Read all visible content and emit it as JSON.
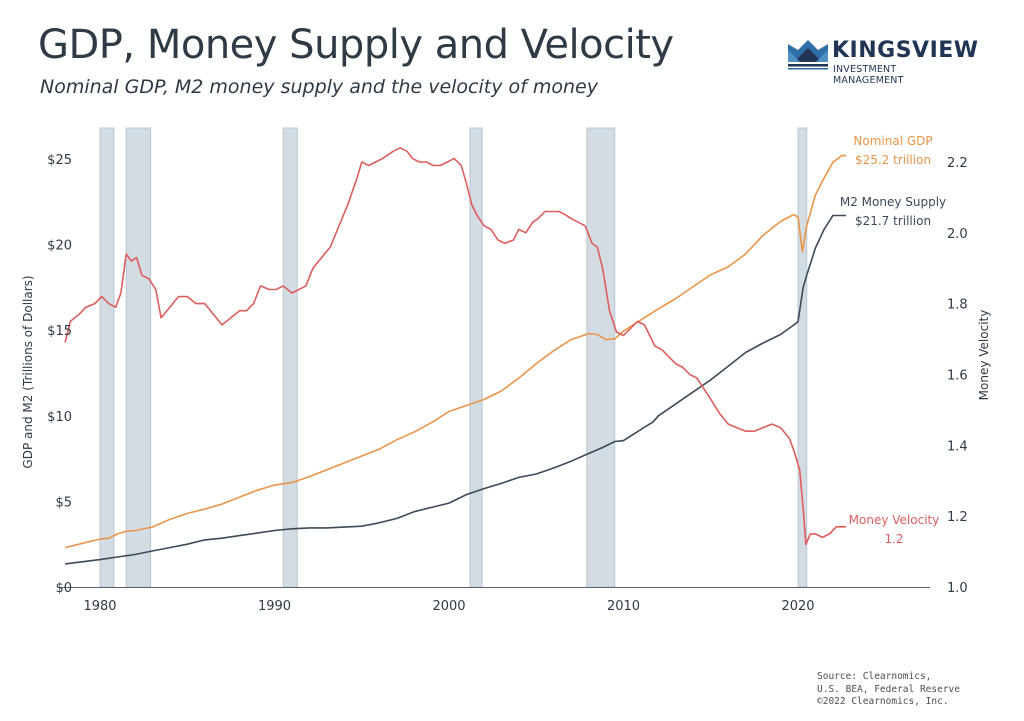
{
  "header": {
    "title": "GDP, Money Supply and Velocity",
    "subtitle": "Nominal GDP, M2 money supply and the velocity of money"
  },
  "logo": {
    "name": "KINGSVIEW",
    "tagline": "INVESTMENT MANAGEMENT",
    "icon": "crown-icon"
  },
  "footer": {
    "source_lines": [
      "Source: Clearnomics,",
      "U.S. BEA, Federal Reserve",
      "©2022 Clearnomics, Inc."
    ]
  },
  "colors": {
    "gdp": "#e8954a",
    "m2": "#3c4a5a",
    "velocity": "#de5d5d",
    "recession": "#d3dce3",
    "recession_edge": "#b9c6d0",
    "axis": "#5b6470",
    "text": "#2e3a46"
  },
  "chart_data": {
    "type": "line",
    "title": "GDP, Money Supply and Velocity",
    "subtitle": "Nominal GDP, M2 money supply and the velocity of money",
    "xlabel": "",
    "ylabel": "GDP and M2 (Trillions of Dollars)",
    "y2label": "Money Velocity",
    "xlim": [
      1978,
      2023.5
    ],
    "ylim": [
      0,
      27
    ],
    "y2lim": [
      1.0,
      2.3
    ],
    "x_ticks": [
      1980,
      1990,
      2000,
      2010,
      2020
    ],
    "x_tick_labels": [
      "1980",
      "1990",
      "2000",
      "2010",
      "2020"
    ],
    "y_ticks": [
      0,
      5,
      10,
      15,
      20,
      25
    ],
    "y_tick_labels": [
      "$0",
      "$5",
      "$10",
      "$15",
      "$20",
      "$25"
    ],
    "y2_ticks": [
      1.0,
      1.2,
      1.4,
      1.6,
      1.8,
      2.0,
      2.2
    ],
    "y2_tick_labels": [
      "1.0",
      "1.2",
      "1.4",
      "1.6",
      "1.8",
      "2.0",
      "2.2"
    ],
    "grid": false,
    "recessions": [
      [
        1980.0,
        1980.8
      ],
      [
        1981.5,
        1982.9
      ],
      [
        1990.5,
        1991.3
      ],
      [
        2001.2,
        2001.9
      ],
      [
        2007.9,
        2009.5
      ],
      [
        2020.0,
        2020.5
      ]
    ],
    "series": [
      {
        "name": "Nominal GDP",
        "axis": "left",
        "annotation": [
          "Nominal GDP",
          "$25.2 trillion"
        ],
        "x": [
          1978,
          1979,
          1980,
          1980.5,
          1981,
          1981.5,
          1982,
          1983,
          1984,
          1985,
          1986,
          1987,
          1988,
          1989,
          1990,
          1991,
          1992,
          1993,
          1994,
          1995,
          1996,
          1997,
          1998,
          1999,
          2000,
          2001,
          2002,
          2003,
          2004,
          2005,
          2006,
          2007,
          2008,
          2008.5,
          2009,
          2009.5,
          2010,
          2011,
          2012,
          2013,
          2014,
          2015,
          2016,
          2017,
          2018,
          2019,
          2019.75,
          2020.0,
          2020.25,
          2020.5,
          2021,
          2021.5,
          2022,
          2022.5,
          2022.75
        ],
        "values": [
          2.3,
          2.55,
          2.8,
          2.85,
          3.1,
          3.25,
          3.3,
          3.5,
          3.95,
          4.3,
          4.55,
          4.85,
          5.25,
          5.65,
          5.95,
          6.1,
          6.45,
          6.85,
          7.25,
          7.65,
          8.05,
          8.6,
          9.05,
          9.6,
          10.25,
          10.6,
          10.95,
          11.45,
          12.2,
          13.05,
          13.8,
          14.45,
          14.8,
          14.75,
          14.45,
          14.5,
          14.95,
          15.6,
          16.25,
          16.85,
          17.55,
          18.25,
          18.7,
          19.45,
          20.55,
          21.35,
          21.75,
          21.6,
          19.6,
          21.1,
          22.9,
          23.9,
          24.8,
          25.2,
          25.2
        ]
      },
      {
        "name": "M2 Money Supply",
        "axis": "left",
        "annotation": [
          "M2 Money Supply",
          "$21.7 trillion"
        ],
        "x": [
          1978,
          1980,
          1981,
          1982,
          1983,
          1984,
          1985,
          1986,
          1987,
          1988,
          1989,
          1990,
          1991,
          1992,
          1993,
          1994,
          1995,
          1996,
          1997,
          1998,
          1999,
          2000,
          2001,
          2002,
          2003,
          2004,
          2005,
          2006,
          2007,
          2008,
          2008.8,
          2009.5,
          2010,
          2011,
          2011.7,
          2012,
          2013,
          2014,
          2015,
          2016,
          2017,
          2018,
          2019,
          2019.75,
          2020.0,
          2020.3,
          2020.5,
          2021,
          2021.5,
          2022,
          2022.5,
          2022.75
        ],
        "values": [
          1.35,
          1.6,
          1.75,
          1.9,
          2.1,
          2.3,
          2.5,
          2.75,
          2.85,
          3.0,
          3.15,
          3.3,
          3.4,
          3.45,
          3.45,
          3.5,
          3.55,
          3.75,
          4.0,
          4.4,
          4.65,
          4.9,
          5.4,
          5.75,
          6.05,
          6.4,
          6.6,
          6.95,
          7.35,
          7.8,
          8.15,
          8.5,
          8.55,
          9.2,
          9.65,
          10.0,
          10.7,
          11.4,
          12.1,
          12.9,
          13.7,
          14.25,
          14.75,
          15.3,
          15.5,
          17.5,
          18.2,
          19.8,
          20.9,
          21.7,
          21.7,
          21.7
        ]
      },
      {
        "name": "Money Velocity",
        "axis": "right",
        "annotation": [
          "Money Velocity",
          "1.2"
        ],
        "x": [
          1978,
          1978.3,
          1978.8,
          1979.2,
          1979.7,
          1980.1,
          1980.5,
          1980.9,
          1981.2,
          1981.5,
          1981.8,
          1982.1,
          1982.4,
          1982.8,
          1983.2,
          1983.5,
          1984.0,
          1984.5,
          1985.0,
          1985.5,
          1986.0,
          1986.5,
          1987.0,
          1987.5,
          1988.0,
          1988.4,
          1988.8,
          1989.2,
          1989.7,
          1990.1,
          1990.5,
          1991.0,
          1991.4,
          1991.8,
          1992.2,
          1992.7,
          1993.2,
          1993.7,
          1994.2,
          1994.7,
          1995.0,
          1995.4,
          1995.8,
          1996.2,
          1996.5,
          1996.8,
          1997.2,
          1997.6,
          1997.9,
          1998.3,
          1998.7,
          1999.1,
          1999.5,
          1999.9,
          2000.3,
          2000.5,
          2000.7,
          2001.0,
          2001.3,
          2001.6,
          2002.0,
          2002.4,
          2002.8,
          2003.2,
          2003.7,
          2004.0,
          2004.4,
          2004.8,
          2005.1,
          2005.5,
          2005.9,
          2006.3,
          2006.7,
          2007.0,
          2007.4,
          2007.8,
          2008.2,
          2008.5,
          2008.8,
          2009.2,
          2009.6,
          2010.0,
          2010.4,
          2010.8,
          2011.2,
          2011.5,
          2011.8,
          2012.2,
          2012.6,
          2013.0,
          2013.4,
          2013.8,
          2014.2,
          2014.6,
          2015.0,
          2015.5,
          2016.0,
          2016.5,
          2017.0,
          2017.5,
          2018.0,
          2018.5,
          2019.0,
          2019.5,
          2019.8,
          2020.1,
          2020.3,
          2020.45,
          2020.7,
          2021.0,
          2021.4,
          2021.8,
          2022.2,
          2022.5,
          2022.75
        ],
        "values": [
          1.69,
          1.75,
          1.77,
          1.79,
          1.8,
          1.82,
          1.8,
          1.79,
          1.83,
          1.94,
          1.92,
          1.93,
          1.88,
          1.87,
          1.84,
          1.76,
          1.79,
          1.82,
          1.82,
          1.8,
          1.8,
          1.77,
          1.74,
          1.76,
          1.78,
          1.78,
          1.8,
          1.85,
          1.84,
          1.84,
          1.85,
          1.83,
          1.84,
          1.85,
          1.9,
          1.93,
          1.96,
          2.02,
          2.08,
          2.15,
          2.2,
          2.19,
          2.2,
          2.21,
          2.22,
          2.23,
          2.24,
          2.23,
          2.21,
          2.2,
          2.2,
          2.19,
          2.19,
          2.2,
          2.21,
          2.2,
          2.19,
          2.14,
          2.08,
          2.05,
          2.02,
          2.01,
          1.98,
          1.97,
          1.98,
          2.01,
          2.0,
          2.03,
          2.04,
          2.06,
          2.06,
          2.06,
          2.05,
          2.04,
          2.03,
          2.02,
          1.97,
          1.96,
          1.9,
          1.78,
          1.72,
          1.71,
          1.73,
          1.75,
          1.74,
          1.71,
          1.68,
          1.67,
          1.65,
          1.63,
          1.62,
          1.6,
          1.59,
          1.56,
          1.53,
          1.49,
          1.46,
          1.45,
          1.44,
          1.44,
          1.45,
          1.46,
          1.45,
          1.42,
          1.38,
          1.33,
          1.22,
          1.12,
          1.15,
          1.15,
          1.14,
          1.15,
          1.17,
          1.17,
          1.17
        ]
      }
    ]
  }
}
